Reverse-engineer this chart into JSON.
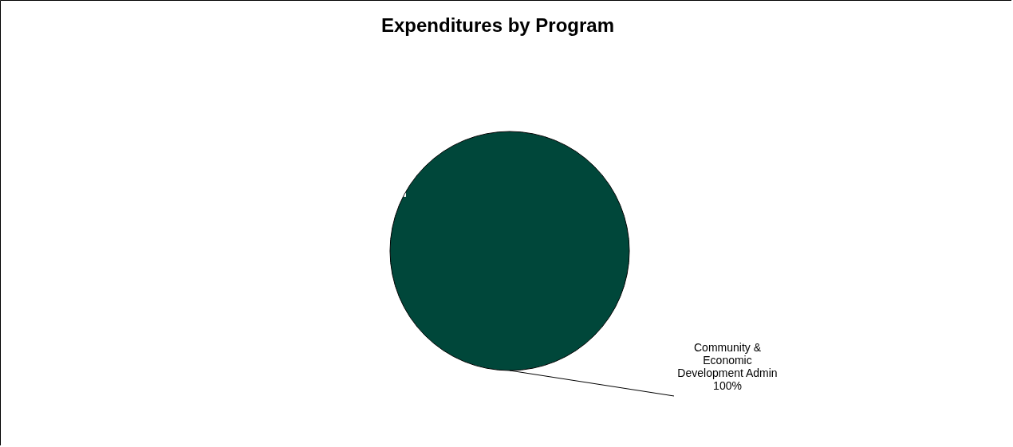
{
  "chart_data": {
    "type": "pie",
    "title": "Expenditures by Program",
    "categories": [
      "Community & Economic Development Admin"
    ],
    "values": [
      100
    ],
    "colors": [
      "#00473a"
    ],
    "value_labels": [
      "100%"
    ],
    "legend": false
  }
}
